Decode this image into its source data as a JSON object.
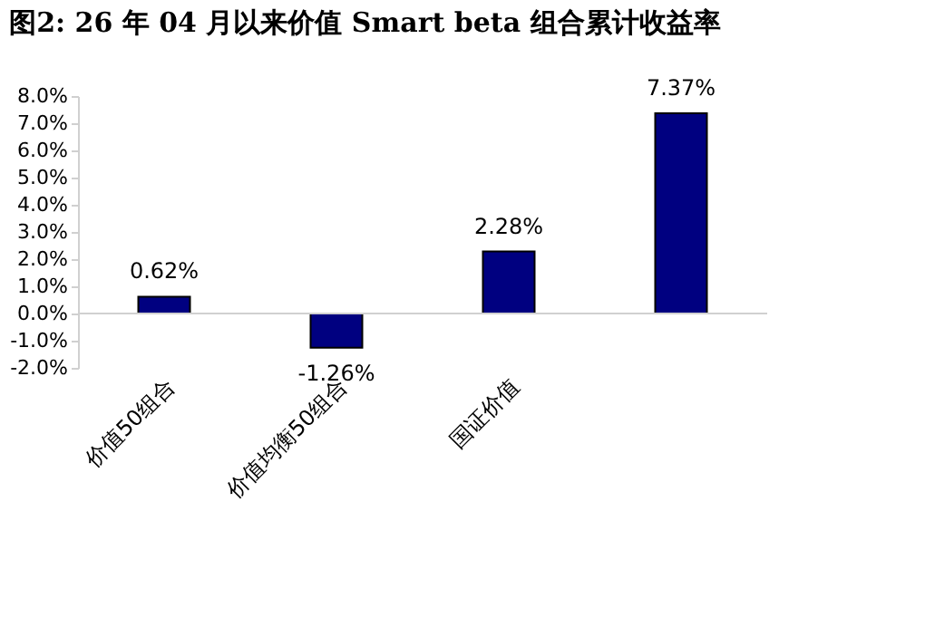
{
  "chart_data": {
    "type": "bar",
    "title": "图2:  26 年 04 月以来价值 Smart beta 组合累计收益率",
    "categories": [
      "价值50组合",
      "价值均衡50组合",
      "国证价值",
      null
    ],
    "values": [
      0.62,
      -1.26,
      2.28,
      7.37
    ],
    "value_labels": [
      "0.62%",
      "-1.26%",
      "2.28%",
      "7.37%"
    ],
    "color": "#000080",
    "ylim": [
      -2,
      8
    ],
    "yticks": [
      {
        "value": -2,
        "label": "-2.0%"
      },
      {
        "value": -1,
        "label": "-1.0%"
      },
      {
        "value": 0,
        "label": "0.0%"
      },
      {
        "value": 1,
        "label": "1.0%"
      },
      {
        "value": 2,
        "label": "2.0%"
      },
      {
        "value": 3,
        "label": "3.0%"
      },
      {
        "value": 4,
        "label": "4.0%"
      },
      {
        "value": 5,
        "label": "5.0%"
      },
      {
        "value": 6,
        "label": "6.0%"
      },
      {
        "value": 7,
        "label": "7.0%"
      },
      {
        "value": 8,
        "label": "8.0%"
      }
    ],
    "ref_lines": [
      {
        "axis": "y",
        "value": 0,
        "color": "#d0d0d0"
      }
    ],
    "grid": false
  }
}
